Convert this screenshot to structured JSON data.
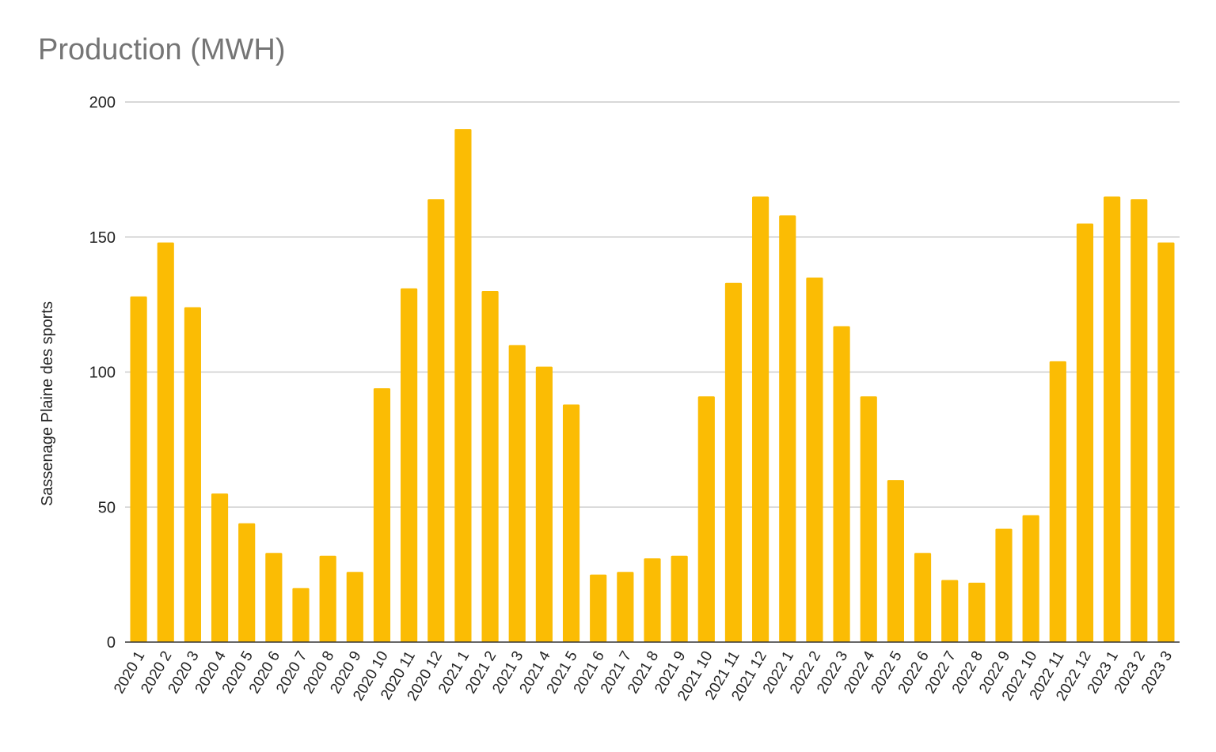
{
  "chart_data": {
    "type": "bar",
    "title": "Production (MWH)",
    "xlabel": "",
    "ylabel": "Sassenage Plaine des sports",
    "ylim": [
      0,
      200
    ],
    "yticks": [
      "0",
      "50",
      "100",
      "150",
      "200"
    ],
    "grid": true,
    "legend": "none",
    "bar_color": "#FBBC04",
    "grid_color": "#CCCCCC",
    "categories": [
      "2020 1",
      "2020 2",
      "2020 3",
      "2020 4",
      "2020 5",
      "2020 6",
      "2020 7",
      "2020 8",
      "2020 9",
      "2020 10",
      "2020 11",
      "2020 12",
      "2021 1",
      "2021 2",
      "2021 3",
      "2021 4",
      "2021 5",
      "2021 6",
      "2021 7",
      "2021 8",
      "2021 9",
      "2021 10",
      "2021 11",
      "2021 12",
      "2022 1",
      "2022 2",
      "2022 3",
      "2022 4",
      "2022 5",
      "2022 6",
      "2022 7",
      "2022 8",
      "2022 9",
      "2022 10",
      "2022 11",
      "2022 12",
      "2023 1",
      "2023 2",
      "2023 3"
    ],
    "values": [
      128,
      148,
      124,
      55,
      44,
      33,
      20,
      32,
      26,
      94,
      131,
      164,
      190,
      130,
      110,
      102,
      88,
      25,
      26,
      31,
      32,
      91,
      133,
      165,
      158,
      135,
      117,
      91,
      60,
      33,
      23,
      22,
      42,
      47,
      104,
      155,
      165,
      164,
      148
    ]
  }
}
